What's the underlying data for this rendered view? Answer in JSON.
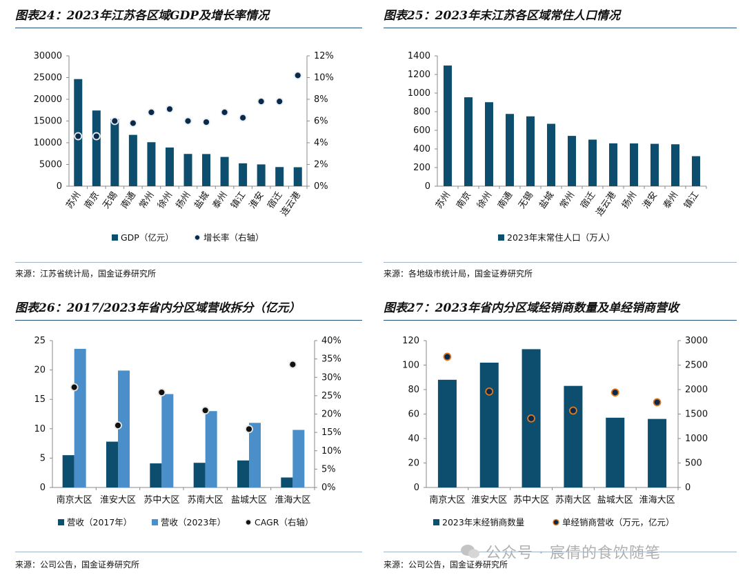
{
  "panels": [
    {
      "title": "图表24：2023年江苏各区域GDP及增长率情况",
      "source": "来源：江苏省统计局，国金证券研究所"
    },
    {
      "title": "图表25：2023年末江苏各区域常住人口情况",
      "source": "来源：各地级市统计局，国金证券研究所"
    },
    {
      "title": "图表26：2017/2023年省内分区域营收拆分（亿元）",
      "source": "来源：公司公告，国金证券研究所"
    },
    {
      "title": "图表27：2023年省内分区域经销商数量及单经销商营收",
      "source": "来源：公司公告，国金证券研究所"
    }
  ],
  "watermark": "公众号 · 宸倩的食饮随笔",
  "colors": {
    "dark": "#0d4d6e",
    "light": "#4a8fc9",
    "dot_dark": "#0b2a4a",
    "dot_orange": "#e07b22",
    "rule": "#1f4e79"
  },
  "chart_data": [
    {
      "type": "bar",
      "categories": [
        "苏州",
        "南京",
        "无锡",
        "南通",
        "常州",
        "徐州",
        "扬州",
        "盐城",
        "泰州",
        "镇江",
        "淮安",
        "宿迁",
        "连云港"
      ],
      "series": [
        {
          "name": "GDP（亿元）",
          "kind": "bar",
          "axis": "left",
          "values": [
            24650,
            17420,
            15460,
            11810,
            10120,
            8900,
            7420,
            7400,
            6730,
            5260,
            5010,
            4400,
            4360
          ]
        },
        {
          "name": "增长率（右轴）",
          "kind": "dot",
          "axis": "right",
          "values": [
            4.6,
            4.6,
            6.0,
            5.8,
            6.8,
            7.1,
            6.0,
            5.9,
            6.8,
            6.3,
            7.8,
            7.8,
            10.2
          ]
        }
      ],
      "y_left": {
        "range": [
          0,
          30000
        ],
        "ticks": [
          "0",
          "5000",
          "10000",
          "15000",
          "20000",
          "25000",
          "30000"
        ]
      },
      "y_right": {
        "range": [
          0,
          12
        ],
        "ticks": [
          "0%",
          "2%",
          "4%",
          "6%",
          "8%",
          "10%",
          "12%"
        ]
      },
      "grid": false,
      "legend_position": "bottom"
    },
    {
      "type": "bar",
      "categories": [
        "苏州",
        "南京",
        "徐州",
        "南通",
        "无锡",
        "盐城",
        "常州",
        "宿迁",
        "连云港",
        "扬州",
        "淮安",
        "泰州",
        "镇江"
      ],
      "series": [
        {
          "name": "2023年末常住人口（万人）",
          "kind": "bar",
          "axis": "left",
          "values": [
            1296,
            955,
            902,
            776,
            750,
            670,
            540,
            500,
            460,
            459,
            455,
            450,
            322
          ]
        }
      ],
      "y_left": {
        "range": [
          0,
          1400
        ],
        "ticks": [
          "0",
          "200",
          "400",
          "600",
          "800",
          "1000",
          "1200",
          "1400"
        ]
      },
      "grid": false,
      "legend_position": "bottom"
    },
    {
      "type": "bar",
      "categories": [
        "南京大区",
        "淮安大区",
        "苏中大区",
        "苏南大区",
        "盐城大区",
        "淮海大区"
      ],
      "series": [
        {
          "name": "营收（2017年）",
          "kind": "bar",
          "axis": "left",
          "values": [
            5.5,
            7.8,
            4.1,
            4.2,
            4.6,
            1.7
          ]
        },
        {
          "name": "营收（2023年）",
          "kind": "bar",
          "axis": "left",
          "values": [
            23.6,
            19.9,
            15.9,
            13.0,
            11.0,
            9.8
          ]
        },
        {
          "name": "CAGR（右轴）",
          "kind": "dot",
          "axis": "right",
          "values": [
            27.3,
            16.9,
            25.9,
            21.0,
            15.9,
            33.5
          ]
        }
      ],
      "y_left": {
        "range": [
          0,
          25
        ],
        "ticks": [
          "0",
          "5",
          "10",
          "15",
          "20",
          "25"
        ]
      },
      "y_right": {
        "range": [
          0,
          40
        ],
        "ticks": [
          "0%",
          "5%",
          "10%",
          "15%",
          "20%",
          "25%",
          "30%",
          "35%",
          "40%"
        ]
      },
      "grid": false,
      "legend_position": "bottom"
    },
    {
      "type": "bar",
      "categories": [
        "南京大区",
        "淮安大区",
        "苏中大区",
        "苏南大区",
        "盐城大区",
        "淮海大区"
      ],
      "series": [
        {
          "name": "2023年末经销商数量",
          "kind": "bar",
          "axis": "left",
          "values": [
            88,
            102,
            113,
            83,
            57,
            56
          ]
        },
        {
          "name": "单经销商营收（万元，亿元）",
          "kind": "dot",
          "axis": "right",
          "values": [
            2670,
            1960,
            1410,
            1570,
            1940,
            1740
          ]
        }
      ],
      "y_left": {
        "range": [
          0,
          120
        ],
        "ticks": [
          "0",
          "20",
          "40",
          "60",
          "80",
          "100",
          "120"
        ]
      },
      "y_right": {
        "range": [
          0,
          3000
        ],
        "ticks": [
          "0",
          "500",
          "1000",
          "1500",
          "2000",
          "2500",
          "3000"
        ]
      },
      "grid": false,
      "legend_position": "bottom"
    }
  ]
}
